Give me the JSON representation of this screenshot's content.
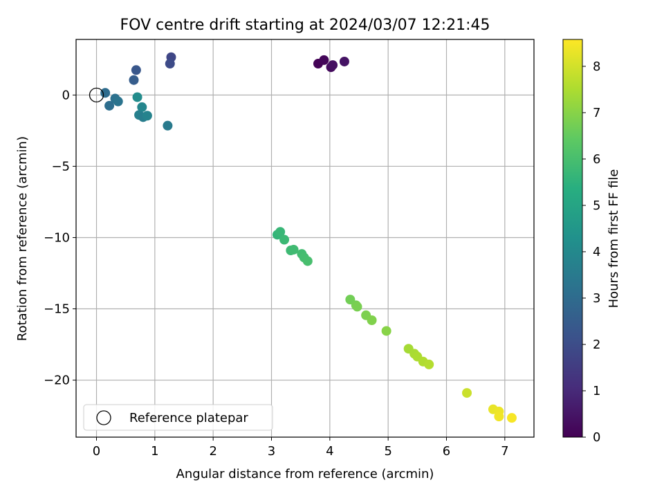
{
  "chart_data": {
    "type": "scatter",
    "title": "FOV centre drift starting at 2024/03/07 12:21:45",
    "xlabel": "Angular distance from reference (arcmin)",
    "ylabel": "Rotation from reference (arcmin)",
    "xlim": [
      -0.35,
      7.5
    ],
    "ylim": [
      -24,
      3.9
    ],
    "xticks": [
      0,
      1,
      2,
      3,
      4,
      5,
      6,
      7
    ],
    "yticks": [
      0,
      -5,
      -10,
      -15,
      -20
    ],
    "xtick_labels": [
      "0",
      "1",
      "2",
      "3",
      "4",
      "5",
      "6",
      "7"
    ],
    "ytick_labels": [
      "0",
      "−5",
      "−10",
      "−15",
      "−20"
    ],
    "grid": true,
    "colormap": "viridis",
    "colorbar": {
      "label": "Hours from first FF file",
      "min": 0,
      "max": 8.58,
      "ticks": [
        0,
        1,
        2,
        3,
        4,
        5,
        6,
        7,
        8
      ],
      "tick_labels": [
        "0",
        "1",
        "2",
        "3",
        "4",
        "5",
        "6",
        "7",
        "8"
      ]
    },
    "legend": {
      "location": "lower-left",
      "entries": [
        "Reference platepar"
      ]
    },
    "reference_point": {
      "x": 0,
      "y": 0
    },
    "points": [
      {
        "x": 3.8,
        "y": 2.2,
        "c": 0.05
      },
      {
        "x": 3.9,
        "y": 2.45,
        "c": 0.15
      },
      {
        "x": 4.02,
        "y": 1.95,
        "c": 0.25
      },
      {
        "x": 4.05,
        "y": 2.1,
        "c": 0.35
      },
      {
        "x": 4.25,
        "y": 2.35,
        "c": 0.45
      },
      {
        "x": 1.28,
        "y": 2.65,
        "c": 1.8
      },
      {
        "x": 1.26,
        "y": 2.2,
        "c": 1.95
      },
      {
        "x": 0.68,
        "y": 1.75,
        "c": 2.3
      },
      {
        "x": 0.64,
        "y": 1.05,
        "c": 2.5
      },
      {
        "x": 0.15,
        "y": 0.15,
        "c": 3.0
      },
      {
        "x": 0.22,
        "y": -0.75,
        "c": 3.1
      },
      {
        "x": 0.32,
        "y": -0.25,
        "c": 3.2
      },
      {
        "x": 0.37,
        "y": -0.45,
        "c": 3.3
      },
      {
        "x": 0.7,
        "y": -0.15,
        "c": 4.1
      },
      {
        "x": 0.78,
        "y": -0.85,
        "c": 3.9
      },
      {
        "x": 0.73,
        "y": -1.4,
        "c": 3.7
      },
      {
        "x": 0.8,
        "y": -1.55,
        "c": 3.6
      },
      {
        "x": 0.87,
        "y": -1.45,
        "c": 3.8
      },
      {
        "x": 1.22,
        "y": -2.15,
        "c": 3.5
      },
      {
        "x": 3.1,
        "y": -9.8,
        "c": 5.6
      },
      {
        "x": 3.15,
        "y": -9.6,
        "c": 5.7
      },
      {
        "x": 3.22,
        "y": -10.15,
        "c": 5.75
      },
      {
        "x": 3.33,
        "y": -10.9,
        "c": 5.8
      },
      {
        "x": 3.38,
        "y": -10.85,
        "c": 5.85
      },
      {
        "x": 3.52,
        "y": -11.15,
        "c": 5.9
      },
      {
        "x": 3.56,
        "y": -11.4,
        "c": 5.95
      },
      {
        "x": 3.62,
        "y": -11.65,
        "c": 6.0
      },
      {
        "x": 4.35,
        "y": -14.35,
        "c": 6.7
      },
      {
        "x": 4.45,
        "y": -14.75,
        "c": 6.75
      },
      {
        "x": 4.47,
        "y": -14.85,
        "c": 6.8
      },
      {
        "x": 4.62,
        "y": -15.45,
        "c": 6.85
      },
      {
        "x": 4.72,
        "y": -15.8,
        "c": 6.9
      },
      {
        "x": 4.97,
        "y": -16.55,
        "c": 7.0
      },
      {
        "x": 5.35,
        "y": -17.8,
        "c": 7.4
      },
      {
        "x": 5.45,
        "y": -18.15,
        "c": 7.45
      },
      {
        "x": 5.5,
        "y": -18.35,
        "c": 7.5
      },
      {
        "x": 5.6,
        "y": -18.7,
        "c": 7.55
      },
      {
        "x": 5.7,
        "y": -18.9,
        "c": 7.6
      },
      {
        "x": 6.35,
        "y": -20.9,
        "c": 7.9
      },
      {
        "x": 6.8,
        "y": -22.05,
        "c": 8.3
      },
      {
        "x": 6.9,
        "y": -22.2,
        "c": 8.35
      },
      {
        "x": 6.9,
        "y": -22.55,
        "c": 8.4
      },
      {
        "x": 7.12,
        "y": -22.65,
        "c": 8.5
      }
    ]
  }
}
